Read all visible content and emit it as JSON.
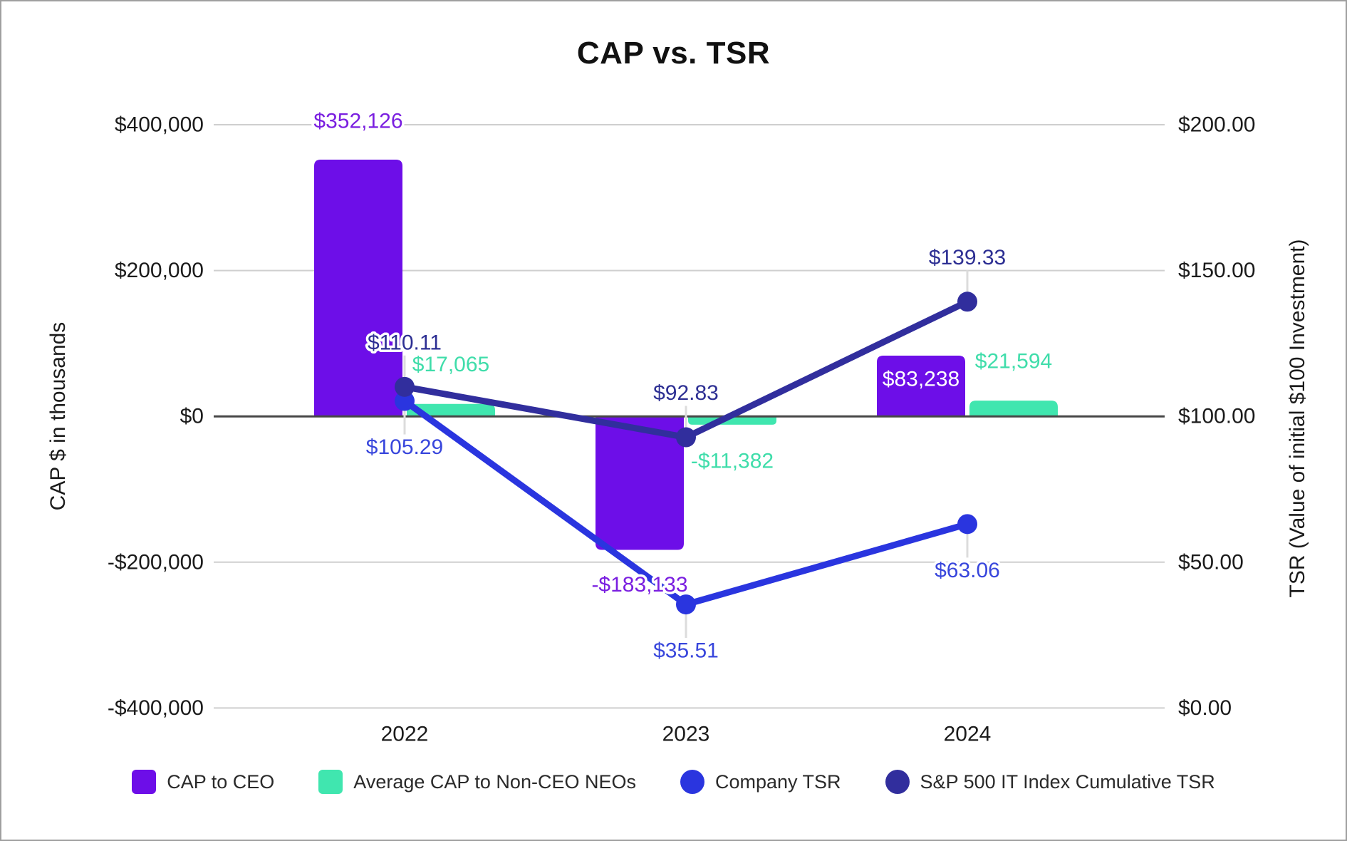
{
  "title": "CAP vs. TSR",
  "axes": {
    "left": {
      "title": "CAP $ in thousands",
      "ticks": [
        "$400,000",
        "$200,000",
        "$0",
        "-$200,000",
        "-$400,000"
      ]
    },
    "right": {
      "title": "TSR (Value of initial $100 Investment)",
      "ticks": [
        "$200.00",
        "$150.00",
        "$100.00",
        "$50.00",
        "$0.00"
      ]
    },
    "x": {
      "ticks": [
        "2022",
        "2023",
        "2024"
      ]
    }
  },
  "chart_data": {
    "type": "bar+line combo, dual axis",
    "categories": [
      "2022",
      "2023",
      "2024"
    ],
    "series": [
      {
        "name": "CAP to CEO",
        "kind": "bar",
        "axis": "left",
        "color": "#6D0EE8",
        "label_color": "#7A1FE0",
        "values": [
          352126,
          -183133,
          83238
        ],
        "data_labels": [
          "$352,126",
          "-$183,133",
          "$83,238"
        ]
      },
      {
        "name": "Average CAP to Non-CEO NEOs",
        "kind": "bar",
        "axis": "left",
        "color": "#40E6AF",
        "label_color": "#3FDDAA",
        "values": [
          17065,
          -11382,
          21594
        ],
        "data_labels": [
          "$17,065",
          "-$11,382",
          "$21,594"
        ]
      },
      {
        "name": "Company TSR",
        "kind": "line",
        "axis": "right",
        "color": "#2A35DF",
        "label_color": "#3846DC",
        "values": [
          105.29,
          35.51,
          63.06
        ],
        "data_labels": [
          "$105.29",
          "$35.51",
          "$63.06"
        ]
      },
      {
        "name": "S&P 500 IT Index Cumulative TSR",
        "kind": "line",
        "axis": "right",
        "color": "#312E9D",
        "label_color": "#2D2F93",
        "values": [
          110.11,
          92.83,
          139.33
        ],
        "data_labels": [
          "$110.11",
          "$92.83",
          "$139.33"
        ]
      }
    ],
    "left_axis_range": [
      -400000,
      400000
    ],
    "right_axis_range": [
      0,
      200
    ],
    "grid": true,
    "legend_position": "bottom"
  },
  "colors": {
    "gridline": "#cfcfcf",
    "zero_line": "#474747",
    "leader_line": "#dcdcdc",
    "axis_text": "#1b1b1b",
    "inside_bar_label": "#ffffff"
  }
}
